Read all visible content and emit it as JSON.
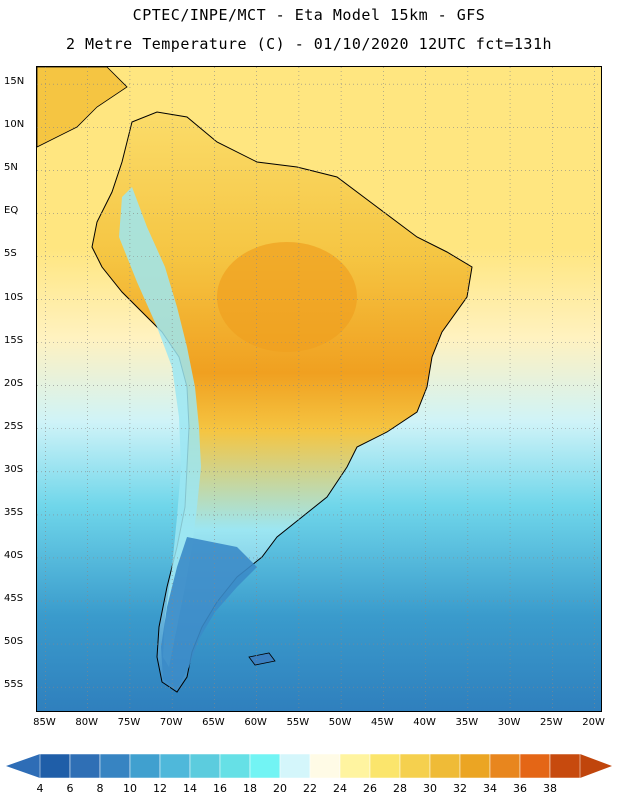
{
  "header": {
    "line1": "CPTEC/INPE/MCT -  Eta Model 15km - GFS",
    "line2": "2 Metre Temperature (C) - 01/10/2020 12UTC fct=131h"
  },
  "map": {
    "lon_range": [
      -86,
      -19
    ],
    "lat_range": [
      17,
      -58
    ],
    "lat_labels": [
      "15N",
      "10N",
      "5N",
      "EQ",
      "5S",
      "10S",
      "15S",
      "20S",
      "25S",
      "30S",
      "35S",
      "40S",
      "45S",
      "50S",
      "55S"
    ],
    "lon_labels": [
      "85W",
      "80W",
      "75W",
      "70W",
      "65W",
      "60W",
      "55W",
      "50W",
      "45W",
      "40W",
      "35W",
      "30W",
      "25W",
      "20W"
    ],
    "gridlines": "dotted",
    "colors": {
      "ocean_warm": "#ffe680",
      "ocean_mid": "#fff2c0",
      "ocean_cool": "#cff3f8",
      "ocean_cold_1": "#6fd6ea",
      "ocean_cold_2": "#49bcd8",
      "ocean_cold_3": "#3a9bcc",
      "ocean_cold_4": "#2f7fbd",
      "land_hot": "#f0a020",
      "land_warm": "#f5c542",
      "land_mild": "#fbdc6a",
      "andes_cool": "#9ce6f2",
      "patagonia": "#3b8bc8"
    }
  },
  "colorbar": {
    "labels": [
      "4",
      "6",
      "8",
      "10",
      "12",
      "14",
      "16",
      "18",
      "20",
      "22",
      "24",
      "26",
      "28",
      "30",
      "32",
      "34",
      "36",
      "38"
    ],
    "colors": [
      "#1f5ea8",
      "#2f6fb5",
      "#3784c2",
      "#40a0cf",
      "#4fb8da",
      "#5cccde",
      "#66e0e6",
      "#72f4f4",
      "#d4f6fb",
      "#fffbe6",
      "#fff4a0",
      "#fbe56c",
      "#f5d04e",
      "#efbb37",
      "#eba523",
      "#e8861e",
      "#e46616",
      "#c74a0e"
    ],
    "left_arrow_color": "#2e6db6",
    "right_arrow_color": "#c0450c"
  }
}
